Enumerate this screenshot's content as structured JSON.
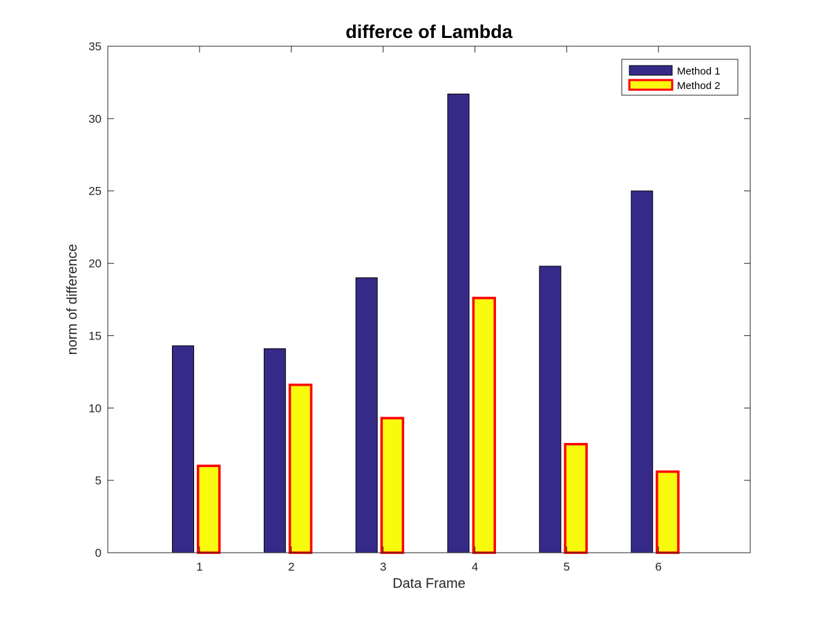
{
  "chart_data": {
    "type": "bar",
    "title": "differce of Lambda",
    "xlabel": "Data Frame",
    "ylabel": "norm of difference",
    "categories": [
      "1",
      "2",
      "3",
      "4",
      "5",
      "6"
    ],
    "yticks": [
      "0",
      "5",
      "10",
      "15",
      "20",
      "25",
      "30",
      "35"
    ],
    "ylim": [
      0,
      35
    ],
    "grid": false,
    "legend_position": "top-right",
    "series": [
      {
        "name": "Method 1",
        "values": [
          14.3,
          14.1,
          19.0,
          31.7,
          19.8,
          25.0
        ],
        "fill": "#352a87",
        "edge": "#000000"
      },
      {
        "name": "Method 2",
        "values": [
          6.0,
          11.6,
          9.3,
          17.6,
          7.5,
          5.6
        ],
        "fill": "#f9fb0e",
        "edge": "#ff0000"
      }
    ]
  }
}
